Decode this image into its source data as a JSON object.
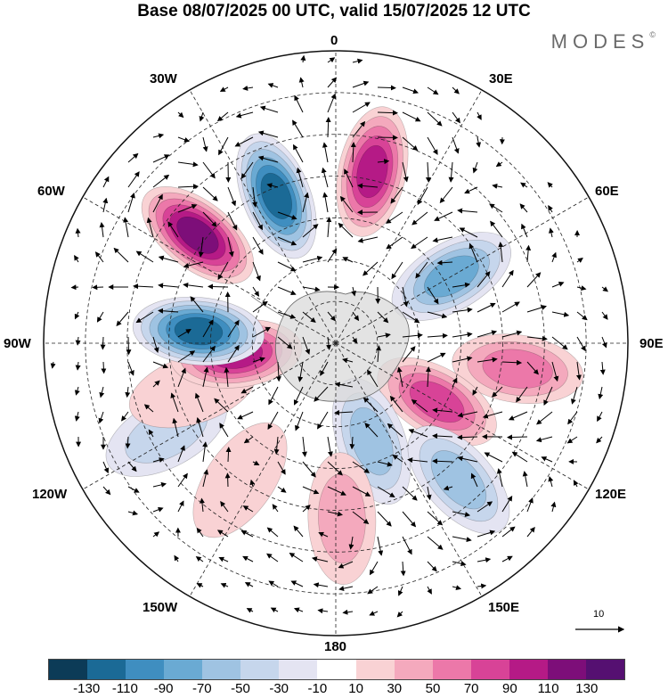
{
  "title": "Base 08/07/2025 00 UTC, valid 15/07/2025 12 UTC",
  "brand": "MODES",
  "brand_mark": "©",
  "longitude_labels": {
    "lon_0": "0",
    "lon_30e": "30E",
    "lon_60e": "60E",
    "lon_90e": "90E",
    "lon_120e": "120E",
    "lon_150e": "150E",
    "lon_180": "180",
    "lon_150w": "150W",
    "lon_120w": "120W",
    "lon_90w": "90W",
    "lon_60w": "60W",
    "lon_30w": "30W"
  },
  "vector_scale_label": "10",
  "colorbar": {
    "colors": [
      "#0c3b57",
      "#1b6a96",
      "#3f8ec0",
      "#6aaad3",
      "#9fc3e2",
      "#c6d6ec",
      "#e4e4f2",
      "#ffffff",
      "#f9d2d4",
      "#f4a9bd",
      "#ec78a9",
      "#d84397",
      "#b51a86",
      "#7d0e79",
      "#551071"
    ],
    "tick_labels": [
      "-130",
      "-110",
      "-90",
      "-70",
      "-50",
      "-30",
      "-10",
      "10",
      "30",
      "50",
      "70",
      "90",
      "110",
      "130"
    ]
  },
  "anomaly_centers": [
    {
      "lon": -52,
      "lat": -48,
      "value": 120
    },
    {
      "lon": -22,
      "lat": -52,
      "value": -125
    },
    {
      "lon": 12,
      "lat": -48,
      "value": 110
    },
    {
      "lon": 60,
      "lat": -58,
      "value": -80
    },
    {
      "lon": 98,
      "lat": -46,
      "value": 60
    },
    {
      "lon": 120,
      "lat": -62,
      "value": 90
    },
    {
      "lon": 160,
      "lat": -65,
      "value": -70
    },
    {
      "lon": 138,
      "lat": -46,
      "value": -65
    },
    {
      "lon": 178,
      "lat": -48,
      "value": 50
    },
    {
      "lon": -118,
      "lat": -44,
      "value": -45
    },
    {
      "lon": -108,
      "lat": -54,
      "value": 35
    },
    {
      "lon": -96,
      "lat": -66,
      "value": 100
    },
    {
      "lon": -85,
      "lat": -57,
      "value": -120
    },
    {
      "lon": -145,
      "lat": -50,
      "value": 30
    }
  ]
}
